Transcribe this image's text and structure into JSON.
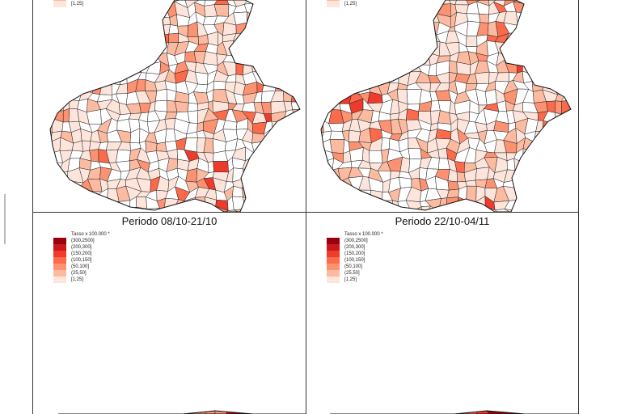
{
  "legend": {
    "title": "Tasso x 100.000 *",
    "classes": [
      {
        "label": "(300,2500]",
        "color": "#99000d"
      },
      {
        "label": "(200,300]",
        "color": "#cb181d"
      },
      {
        "label": "(150,200]",
        "color": "#ef3b2c"
      },
      {
        "label": "(100,150]",
        "color": "#fb6a4a"
      },
      {
        "label": "(50,100]",
        "color": "#fc9272"
      },
      {
        "label": "(25,50]",
        "color": "#fcbba1"
      },
      {
        "label": "[1,25]",
        "color": "#fee5dc"
      }
    ],
    "no_data_color": "#ffffff"
  },
  "panels": [
    {
      "title": ""
    },
    {
      "title": ""
    },
    {
      "title": "Periodo 08/10-21/10"
    },
    {
      "title": "Periodo 22/10-04/11"
    }
  ]
}
